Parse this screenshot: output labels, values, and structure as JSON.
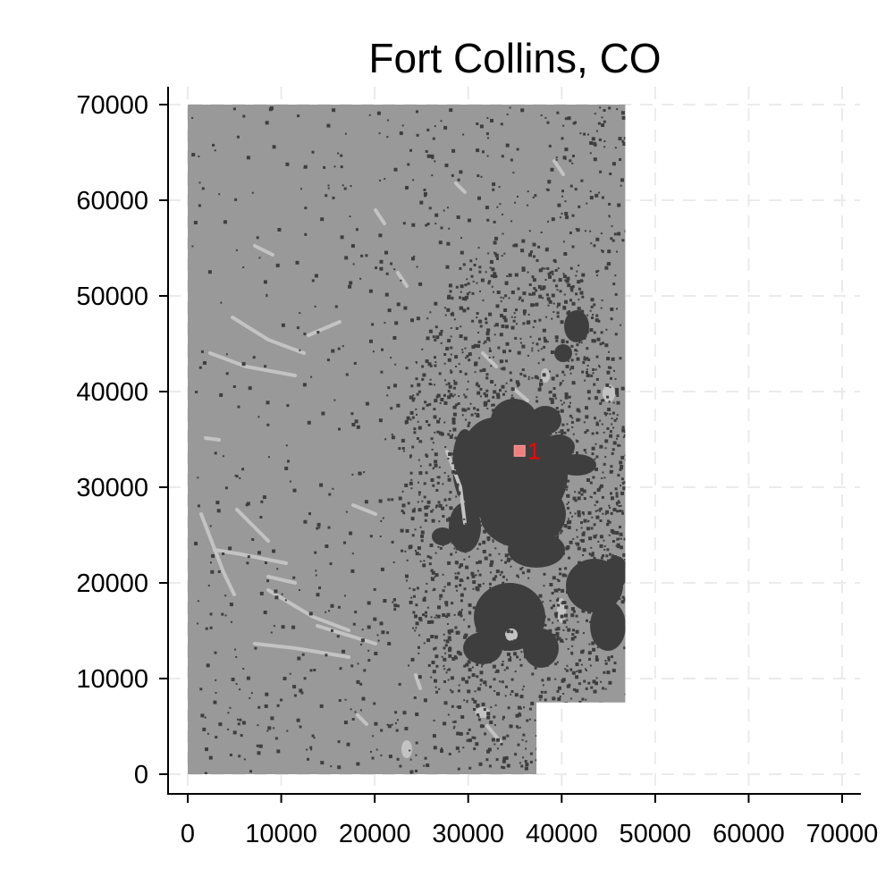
{
  "chart_data": {
    "type": "map",
    "title": "Fort Collins, CO",
    "xlim": [
      0,
      70000
    ],
    "ylim": [
      0,
      70000
    ],
    "x_ticks": [
      "0",
      "10000",
      "20000",
      "30000",
      "40000",
      "50000",
      "60000",
      "70000"
    ],
    "y_ticks": [
      "0",
      "10000",
      "20000",
      "30000",
      "40000",
      "50000",
      "60000",
      "70000"
    ],
    "grid": true,
    "raster_extent": [
      [
        0,
        0
      ],
      [
        37300,
        0
      ],
      [
        37300,
        7500
      ],
      [
        46800,
        7500
      ],
      [
        46800,
        70000
      ],
      [
        0,
        70000
      ]
    ],
    "colors": {
      "background_land": "#999999",
      "developed": "#3e3e3e",
      "light_features": "#c3c3c3",
      "marker": "#f08080",
      "marker_label": "#ff0000",
      "grid": "#ebebeb"
    },
    "markers": [
      {
        "label": "1",
        "x": 35500,
        "y": 33800
      }
    ]
  }
}
